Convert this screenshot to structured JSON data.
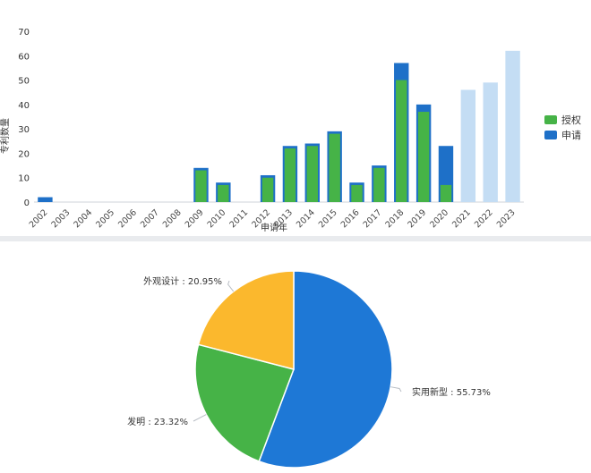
{
  "chart_data": [
    {
      "type": "bar",
      "xlabel": "申请年",
      "ylabel": "专利数量",
      "ylim": [
        0,
        70
      ],
      "yticks": [
        0,
        10,
        20,
        30,
        40,
        50,
        60,
        70
      ],
      "categories": [
        "2002",
        "2003",
        "2004",
        "2005",
        "2006",
        "2007",
        "2008",
        "2009",
        "2010",
        "2011",
        "2012",
        "2013",
        "2014",
        "2015",
        "2016",
        "2017",
        "2018",
        "2019",
        "2020",
        "2021",
        "2022",
        "2023"
      ],
      "series": [
        {
          "name": "授权",
          "color": "#46b347",
          "values": [
            0,
            0,
            0,
            0,
            0,
            0,
            0,
            13,
            7,
            0,
            10,
            22,
            23,
            28,
            7,
            14,
            50,
            37,
            7,
            0,
            0,
            0
          ]
        },
        {
          "name": "申请",
          "color": "#1e70c8",
          "values": [
            2,
            0,
            0,
            0,
            0,
            0,
            0,
            14,
            8,
            0,
            11,
            23,
            24,
            29,
            8,
            15,
            57,
            40,
            23,
            46,
            49,
            62
          ]
        }
      ],
      "pending_color": "#c4ddf4",
      "pending_categories": [
        "2021",
        "2022",
        "2023"
      ],
      "grid": false,
      "legend_position": "right"
    },
    {
      "type": "pie",
      "slices": [
        {
          "label": "实用新型",
          "value": 55.73,
          "text": "实用新型 : 55.73%",
          "color": "#1e78d6"
        },
        {
          "label": "发明",
          "value": 23.32,
          "text": "发明 : 23.32%",
          "color": "#46b347"
        },
        {
          "label": "外观设计",
          "value": 20.95,
          "text": "外观设计 : 20.95%",
          "color": "#fbb82d"
        }
      ]
    }
  ]
}
